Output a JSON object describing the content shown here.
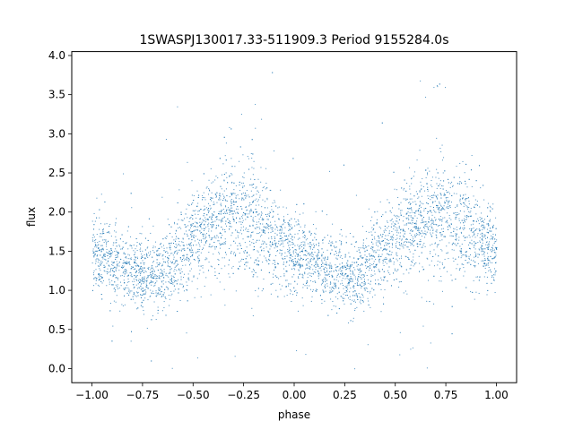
{
  "chart_data": {
    "type": "scatter",
    "title": "1SWASPJ130017.33-511909.3 Period 9155284.0s",
    "xlabel": "phase",
    "ylabel": "flux",
    "xlim": [
      -1.1,
      1.1
    ],
    "ylim": [
      -0.18,
      4.05
    ],
    "xticks": [
      -1.0,
      -0.75,
      -0.5,
      -0.25,
      0.0,
      0.25,
      0.5,
      0.75,
      1.0
    ],
    "xtick_labels": [
      "−1.00",
      "−0.75",
      "−0.50",
      "−0.25",
      "0.00",
      "0.25",
      "0.50",
      "0.75",
      "1.00"
    ],
    "yticks": [
      0.0,
      0.5,
      1.0,
      1.5,
      2.0,
      2.5,
      3.0,
      3.5,
      4.0
    ],
    "ytick_labels": [
      "0.0",
      "0.5",
      "1.0",
      "1.5",
      "2.0",
      "2.5",
      "3.0",
      "3.5",
      "4.0"
    ],
    "grid": false,
    "marker_color": "#1f77b4",
    "series": [
      {
        "x": [
          -1.0,
          -0.9,
          -0.8,
          -0.7,
          -0.6,
          -0.5,
          -0.4,
          -0.3,
          -0.2,
          -0.1,
          0.0,
          0.1,
          0.2,
          0.3,
          0.4,
          0.5,
          0.6,
          0.7,
          0.8,
          0.9,
          1.0
        ],
        "y": [
          1.5,
          1.35,
          1.25,
          1.15,
          1.4,
          1.7,
          1.85,
          1.95,
          1.9,
          1.65,
          1.5,
          1.35,
          1.25,
          1.15,
          1.4,
          1.7,
          1.85,
          1.95,
          1.9,
          1.65,
          1.5
        ],
        "spread": [
          0.42,
          0.4,
          0.36,
          0.4,
          0.42,
          0.45,
          0.55,
          0.6,
          0.6,
          0.5,
          0.42,
          0.4,
          0.36,
          0.4,
          0.42,
          0.45,
          0.55,
          0.6,
          0.6,
          0.5,
          0.42
        ]
      }
    ]
  }
}
